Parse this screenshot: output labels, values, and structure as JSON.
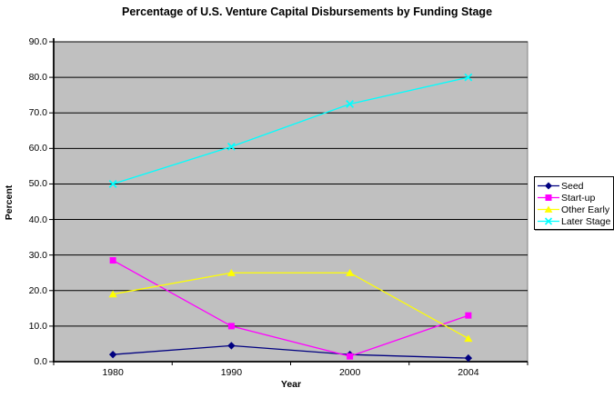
{
  "chart_data": {
    "type": "line",
    "title": "Percentage of U.S. Venture Capital Disbursements by Funding Stage",
    "xlabel": "Year",
    "ylabel": "Percent",
    "ylim": [
      0,
      90
    ],
    "ytick_step": 10,
    "ytick_labels": [
      "0.0",
      "10.0",
      "20.0",
      "30.0",
      "40.0",
      "50.0",
      "60.0",
      "70.0",
      "80.0",
      "90.0"
    ],
    "categories": [
      "1980",
      "1990",
      "2000",
      "2004"
    ],
    "series": [
      {
        "name": "Seed",
        "color": "#000080",
        "marker": "diamond",
        "values": [
          2,
          4.5,
          2,
          1
        ]
      },
      {
        "name": "Start-up",
        "color": "#FF00FF",
        "marker": "square",
        "values": [
          28.5,
          10,
          1.5,
          13
        ]
      },
      {
        "name": "Other Early",
        "color": "#FFFF00",
        "marker": "triangle",
        "values": [
          19,
          25,
          25,
          6.5
        ]
      },
      {
        "name": "Later Stage",
        "color": "#00FFFF",
        "marker": "x",
        "values": [
          50,
          60.5,
          72.5,
          80
        ]
      }
    ],
    "legend_position": "right",
    "grid": true,
    "plot_bg": "#C0C0C0",
    "grid_color": "#000000",
    "plot_border_color": "#808080",
    "axis_color": "#000000"
  }
}
